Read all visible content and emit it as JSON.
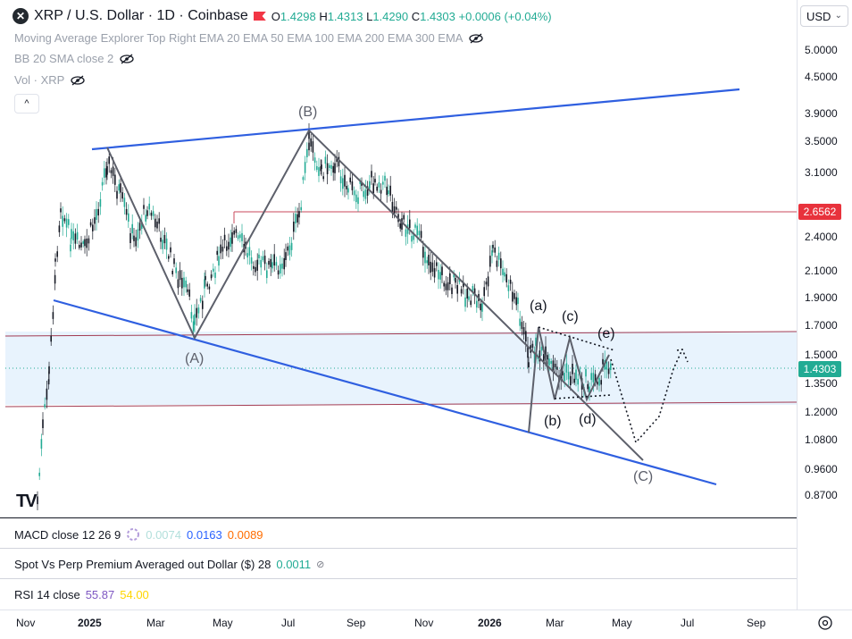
{
  "header": {
    "symbol_logo": "xrp-logo",
    "title": "XRP / U.S. Dollar · 1D · Coinbase",
    "ohlc": {
      "o_label": "O",
      "o": "1.4298",
      "h_label": "H",
      "h": "1.4313",
      "l_label": "L",
      "l": "1.4290",
      "c_label": "C",
      "c": "1.4303",
      "change": "+0.0006 (+0.04%)"
    }
  },
  "indicators": {
    "ma": "Moving Average Explorer Top Right EMA 20 EMA 50 EMA 100 EMA 200 EMA 300 EMA",
    "bb": "BB 20 SMA close 2",
    "vol": "Vol · XRP",
    "collapse": "^"
  },
  "price_scale": {
    "currency": "USD",
    "ticks": [
      "5.0000",
      "4.5000",
      "3.9000",
      "3.5000",
      "3.1000",
      "2.4000",
      "2.1000",
      "1.9000",
      "1.7000",
      "1.5000",
      "1.3500",
      "1.2000",
      "1.0800",
      "0.9600",
      "0.8700"
    ],
    "badge_resistance": "2.6562",
    "badge_last": "1.4303",
    "badge_resistance_color": "#e8323c",
    "badge_last_color": "#22ab94"
  },
  "waves": [
    "(A)",
    "(B)",
    "(C)",
    "(a)",
    "(b)",
    "(c)",
    "(d)",
    "(e)"
  ],
  "panes": {
    "macd": {
      "label": "MACD close 12 26 9",
      "v1": "0.0074",
      "v2": "0.0163",
      "v3": "0.0089",
      "c1": "#b2dfdb",
      "c2": "#2962ff",
      "c3": "#ff6d00"
    },
    "spot": {
      "label": "Spot Vs Perp Premium Averaged out Dollar ($) 28",
      "v1": "0.0011"
    },
    "rsi": {
      "label": "RSI 14 close",
      "v1": "55.87",
      "v2": "54.00",
      "c1": "#7e57c2",
      "c2": "#ffd600"
    }
  },
  "time_axis": {
    "ticks": [
      {
        "label": "Nov",
        "bold": false
      },
      {
        "label": "2025",
        "bold": true
      },
      {
        "label": "Mar",
        "bold": false
      },
      {
        "label": "May",
        "bold": false
      },
      {
        "label": "Jul",
        "bold": false
      },
      {
        "label": "Sep",
        "bold": false
      },
      {
        "label": "Nov",
        "bold": false
      },
      {
        "label": "2026",
        "bold": true
      },
      {
        "label": "Mar",
        "bold": false
      },
      {
        "label": "May",
        "bold": false
      },
      {
        "label": "Jul",
        "bold": false
      },
      {
        "label": "Sep",
        "bold": false
      }
    ]
  },
  "watermark": "TV",
  "colors": {
    "trendline": "#2962ff",
    "support_band": "#e3f2fd",
    "band_line": "#b2304a",
    "up": "#22ab94",
    "down": "#131722"
  }
}
